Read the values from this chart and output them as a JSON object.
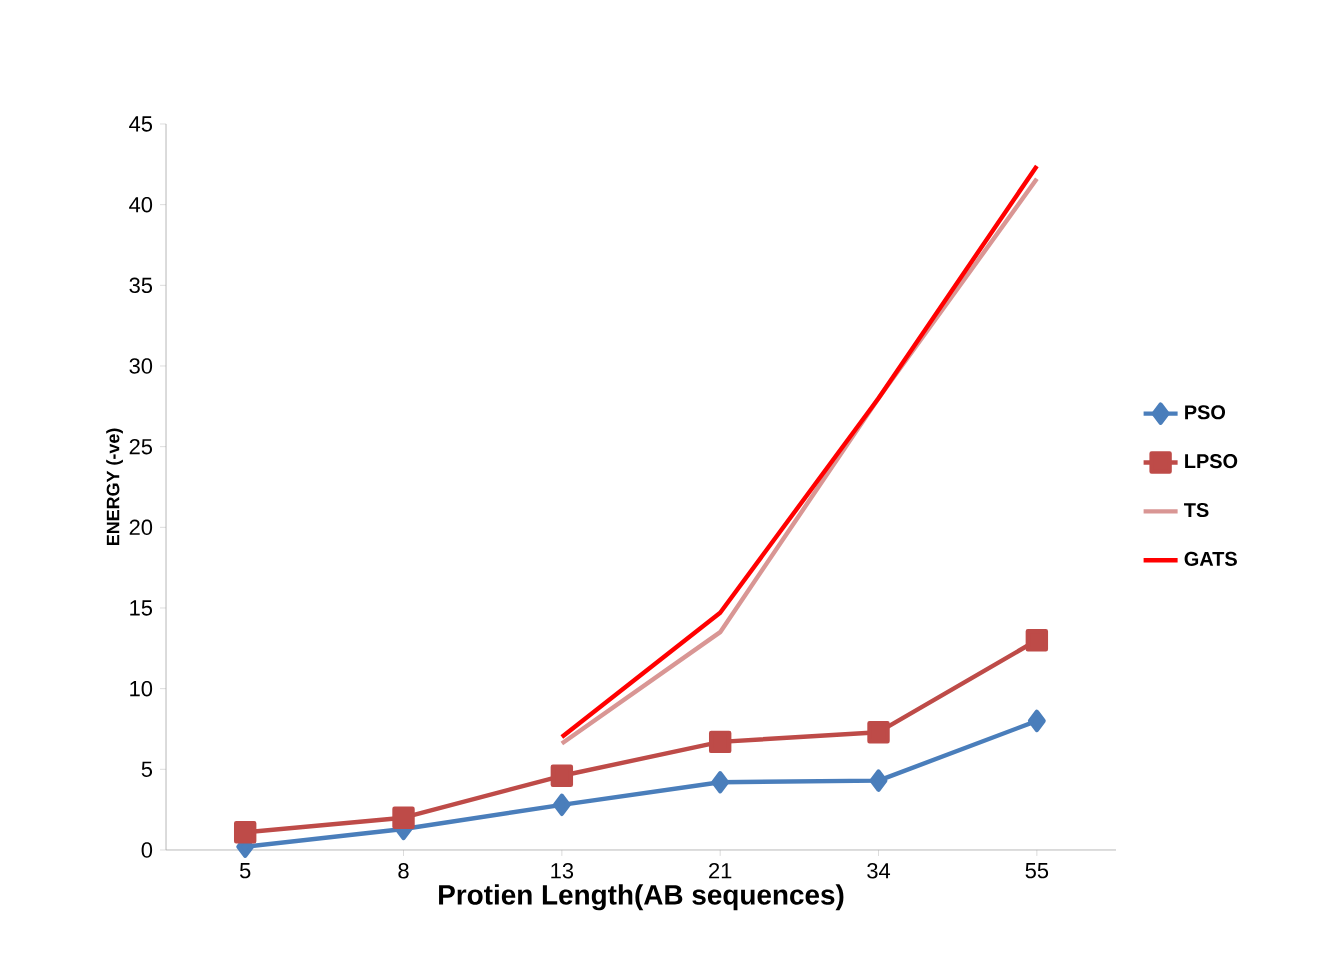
{
  "chart_data": {
    "type": "line",
    "xlabel": "Protien Length(AB sequences)",
    "ylabel": "ENERGY (-ve)",
    "categories": [
      "5",
      "8",
      "13",
      "21",
      "34",
      "55"
    ],
    "series": [
      {
        "name": "PSO",
        "color": "#4a7ebb",
        "marker": "diamond",
        "values": [
          0.2,
          1.3,
          2.8,
          4.2,
          4.3,
          8.0
        ]
      },
      {
        "name": "LPSO",
        "color": "#be4b48",
        "marker": "square",
        "values": [
          1.1,
          2.0,
          4.6,
          6.7,
          7.3,
          13.0
        ]
      },
      {
        "name": "TS",
        "color": "#d99694",
        "marker": "none",
        "values": [
          null,
          null,
          6.6,
          13.5,
          28.0,
          41.6
        ]
      },
      {
        "name": "GATS",
        "color": "#ff0000",
        "marker": "none",
        "values": [
          null,
          null,
          7.0,
          14.7,
          28.0,
          42.4
        ]
      }
    ],
    "ylim": [
      0,
      45
    ],
    "yticks": [
      0,
      5,
      10,
      15,
      20,
      25,
      30,
      35,
      40,
      45
    ],
    "grid": false,
    "legend": "right",
    "line_style": "solid"
  }
}
